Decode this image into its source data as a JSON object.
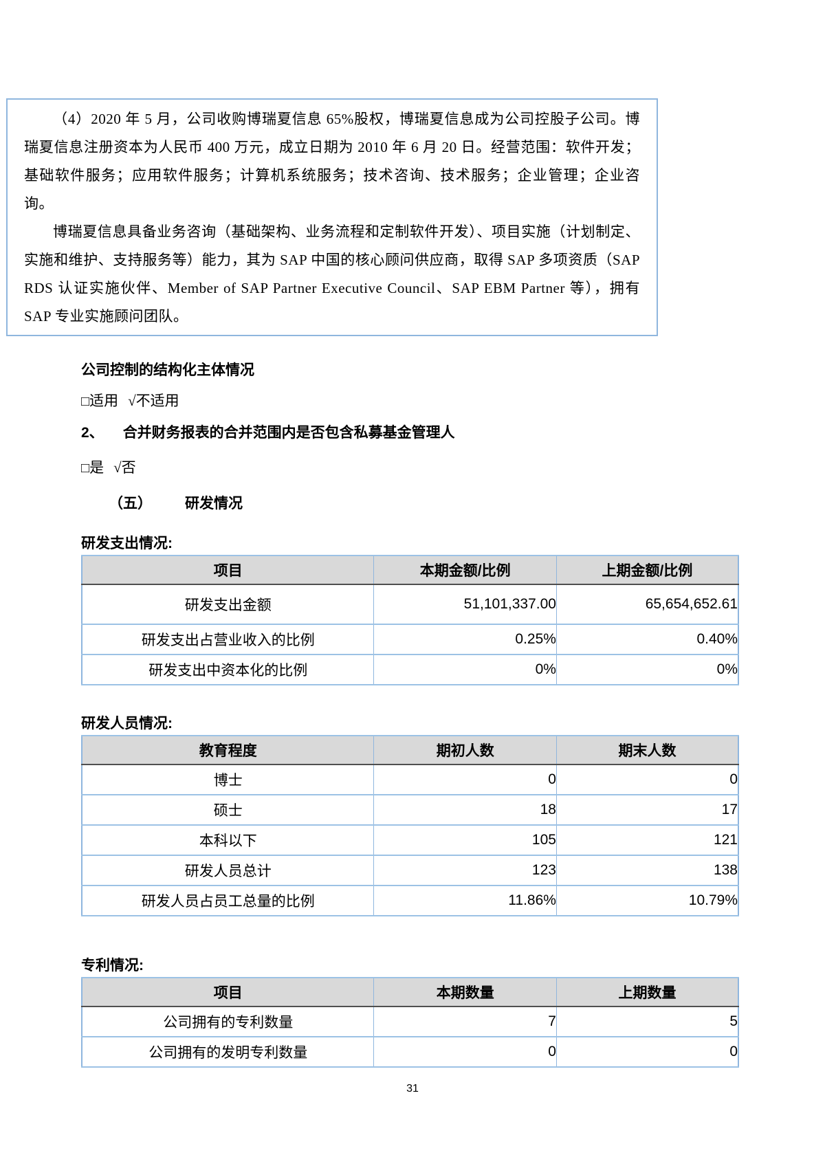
{
  "intro_box": {
    "paragraphs": [
      "（4）2020 年 5 月，公司收购博瑞夏信息 65%股权，博瑞夏信息成为公司控股子公司。博瑞夏信息注册资本为人民币 400 万元，成立日期为 2010 年 6 月 20 日。经营范围：软件开发；基础软件服务；应用软件服务；计算机系统服务；技术咨询、技术服务；企业管理；企业咨询。",
      "博瑞夏信息具备业务咨询（基础架构、业务流程和定制软件开发）、项目实施（计划制定、实施和维护、支持服务等）能力，其为 SAP 中国的核心顾问供应商，取得 SAP 多项资质（SAP RDS 认证实施伙伴、Member of SAP Partner Executive Council、SAP EBM Partner 等），拥有 SAP 专业实施顾问团队。"
    ]
  },
  "sections": {
    "structured_entity_heading": "公司控制的结构化主体情况",
    "applicability": {
      "unchecked_box": "□",
      "option_applicable": "适用",
      "check_mark": "√",
      "option_not_applicable": "不适用"
    },
    "item2_number": "2、",
    "item2_heading": "合并财务报表的合并范围内是否包含私募基金管理人",
    "yes_no": {
      "unchecked_box": "□",
      "option_yes": "是",
      "check_mark": "√",
      "option_no": "否"
    },
    "section5_number": "（五）",
    "section5_title": "研发情况"
  },
  "tables": {
    "rd_expense": {
      "label": "研发支出情况:",
      "headers": [
        "项目",
        "本期金额/比例",
        "上期金额/比例"
      ],
      "rows": [
        {
          "item": "研发支出金额",
          "current": "51,101,337.00",
          "prior": "65,654,652.61"
        },
        {
          "item": "研发支出占营业收入的比例",
          "current": "0.25%",
          "prior": "0.40%"
        },
        {
          "item": "研发支出中资本化的比例",
          "current": "0%",
          "prior": "0%"
        }
      ]
    },
    "rd_personnel": {
      "label": "研发人员情况:",
      "headers": [
        "教育程度",
        "期初人数",
        "期末人数"
      ],
      "rows": [
        {
          "item": "博士",
          "current": "0",
          "prior": "0"
        },
        {
          "item": "硕士",
          "current": "18",
          "prior": "17"
        },
        {
          "item": "本科以下",
          "current": "105",
          "prior": "121"
        },
        {
          "item": "研发人员总计",
          "current": "123",
          "prior": "138"
        },
        {
          "item": "研发人员占员工总量的比例",
          "current": "11.86%",
          "prior": "10.79%"
        }
      ]
    },
    "patents": {
      "label": "专利情况:",
      "headers": [
        "项目",
        "本期数量",
        "上期数量"
      ],
      "rows": [
        {
          "item": "公司拥有的专利数量",
          "current": "7",
          "prior": "5"
        },
        {
          "item": "公司拥有的发明专利数量",
          "current": "0",
          "prior": "0"
        }
      ]
    }
  },
  "footer": {
    "page_number": "31"
  },
  "colors": {
    "table_border": "#8fb6de",
    "header_background": "#d9d9d9",
    "header_rule": "#4f4f4f",
    "text": "#000000"
  }
}
